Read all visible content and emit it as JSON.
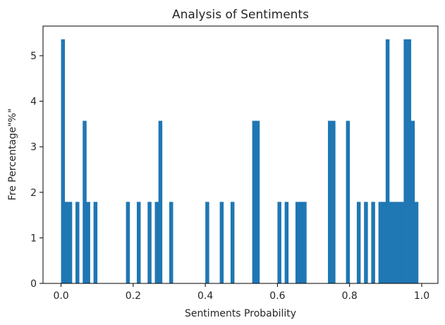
{
  "chart_data": {
    "type": "bar",
    "title": "Analysis of Sentiments",
    "xlabel": "Sentiments Probability",
    "ylabel": "Fre Percentage\"%\"",
    "xlim": [
      -0.05,
      1.045
    ],
    "ylim": [
      0,
      5.65
    ],
    "bin_width": 0.01,
    "xticks": [
      0.0,
      0.2,
      0.4,
      0.6,
      0.8,
      1.0
    ],
    "xtick_labels": [
      "0.0",
      "0.2",
      "0.4",
      "0.6",
      "0.8",
      "1.0"
    ],
    "yticks": [
      0,
      1,
      2,
      3,
      4,
      5
    ],
    "ytick_labels": [
      "0",
      "1",
      "2",
      "3",
      "4",
      "5"
    ],
    "grid": false,
    "color": "#1f77b4",
    "bins": [
      {
        "x": 0.0,
        "value": 5.36
      },
      {
        "x": 0.01,
        "value": 1.79
      },
      {
        "x": 0.02,
        "value": 1.79
      },
      {
        "x": 0.04,
        "value": 1.79
      },
      {
        "x": 0.06,
        "value": 3.57
      },
      {
        "x": 0.07,
        "value": 1.79
      },
      {
        "x": 0.09,
        "value": 1.79
      },
      {
        "x": 0.18,
        "value": 1.79
      },
      {
        "x": 0.21,
        "value": 1.79
      },
      {
        "x": 0.24,
        "value": 1.79
      },
      {
        "x": 0.26,
        "value": 1.79
      },
      {
        "x": 0.27,
        "value": 3.57
      },
      {
        "x": 0.3,
        "value": 1.79
      },
      {
        "x": 0.4,
        "value": 1.79
      },
      {
        "x": 0.44,
        "value": 1.79
      },
      {
        "x": 0.47,
        "value": 1.79
      },
      {
        "x": 0.53,
        "value": 3.57
      },
      {
        "x": 0.54,
        "value": 3.57
      },
      {
        "x": 0.6,
        "value": 1.79
      },
      {
        "x": 0.62,
        "value": 1.79
      },
      {
        "x": 0.65,
        "value": 1.79
      },
      {
        "x": 0.66,
        "value": 1.79
      },
      {
        "x": 0.67,
        "value": 1.79
      },
      {
        "x": 0.74,
        "value": 3.57
      },
      {
        "x": 0.75,
        "value": 3.57
      },
      {
        "x": 0.79,
        "value": 3.57
      },
      {
        "x": 0.82,
        "value": 1.79
      },
      {
        "x": 0.84,
        "value": 1.79
      },
      {
        "x": 0.86,
        "value": 1.79
      },
      {
        "x": 0.88,
        "value": 1.79
      },
      {
        "x": 0.89,
        "value": 1.79
      },
      {
        "x": 0.9,
        "value": 5.36
      },
      {
        "x": 0.91,
        "value": 1.79
      },
      {
        "x": 0.92,
        "value": 1.79
      },
      {
        "x": 0.93,
        "value": 1.79
      },
      {
        "x": 0.94,
        "value": 1.79
      },
      {
        "x": 0.95,
        "value": 5.36
      },
      {
        "x": 0.96,
        "value": 5.36
      },
      {
        "x": 0.97,
        "value": 3.57
      },
      {
        "x": 0.98,
        "value": 1.79
      }
    ]
  }
}
